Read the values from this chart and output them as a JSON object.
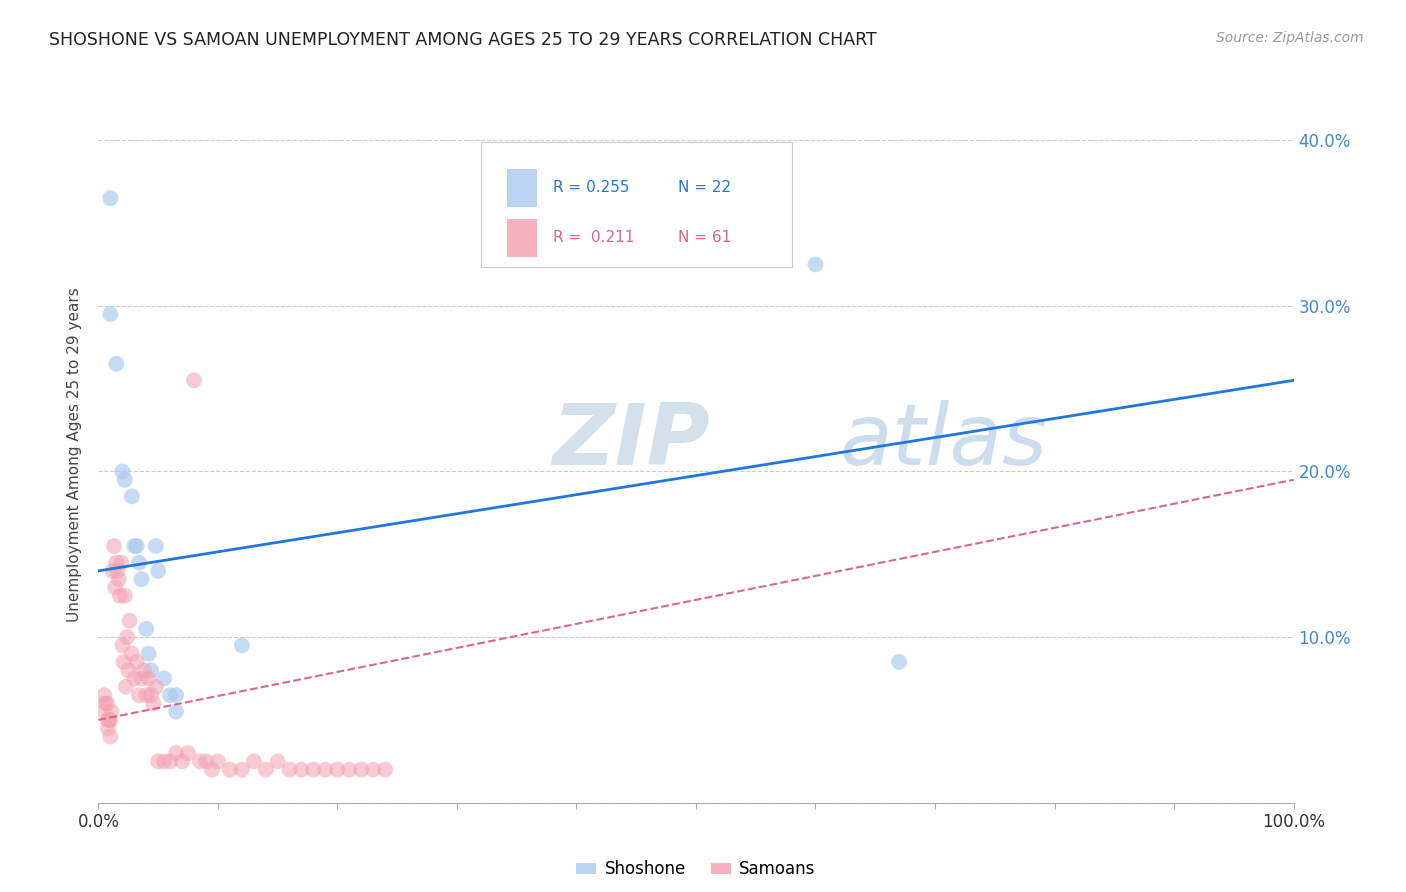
{
  "title": "SHOSHONE VS SAMOAN UNEMPLOYMENT AMONG AGES 25 TO 29 YEARS CORRELATION CHART",
  "source": "Source: ZipAtlas.com",
  "ylabel": "Unemployment Among Ages 25 to 29 years",
  "xlim": [
    0,
    1.0
  ],
  "ylim": [
    0,
    0.42
  ],
  "xticks": [
    0.0,
    0.1,
    0.2,
    0.3,
    0.4,
    0.5,
    0.6,
    0.7,
    0.8,
    0.9,
    1.0
  ],
  "xticklabels": [
    "0.0%",
    "",
    "",
    "",
    "",
    "",
    "",
    "",
    "",
    "",
    "100.0%"
  ],
  "yticks": [
    0.0,
    0.1,
    0.2,
    0.3,
    0.4
  ],
  "yticklabels_right": [
    "",
    "10.0%",
    "20.0%",
    "30.0%",
    "40.0%"
  ],
  "legend_r1": "R = 0.255",
  "legend_n1": "N = 22",
  "legend_r2": "R =  0.211",
  "legend_n2": "N = 61",
  "shoshone_color": "#a8c8ee",
  "samoan_color": "#f4a0b0",
  "shoshone_line_color": "#2277dd",
  "samoan_line_color": "#dd6688",
  "watermark_zip": "ZIP",
  "watermark_atlas": "atlas",
  "shoshone_x": [
    0.01,
    0.01,
    0.015,
    0.02,
    0.022,
    0.028,
    0.03,
    0.032,
    0.034,
    0.036,
    0.04,
    0.042,
    0.044,
    0.048,
    0.05,
    0.055,
    0.06,
    0.065,
    0.065,
    0.12,
    0.6,
    0.67
  ],
  "shoshone_y": [
    0.365,
    0.295,
    0.265,
    0.2,
    0.195,
    0.185,
    0.155,
    0.155,
    0.145,
    0.135,
    0.105,
    0.09,
    0.08,
    0.155,
    0.14,
    0.075,
    0.065,
    0.065,
    0.055,
    0.095,
    0.325,
    0.085
  ],
  "samoan_x": [
    0.005,
    0.005,
    0.006,
    0.007,
    0.008,
    0.008,
    0.009,
    0.01,
    0.01,
    0.011,
    0.012,
    0.013,
    0.014,
    0.015,
    0.016,
    0.017,
    0.018,
    0.019,
    0.02,
    0.021,
    0.022,
    0.023,
    0.024,
    0.025,
    0.026,
    0.028,
    0.03,
    0.032,
    0.034,
    0.036,
    0.038,
    0.04,
    0.042,
    0.044,
    0.046,
    0.048,
    0.05,
    0.055,
    0.06,
    0.065,
    0.07,
    0.075,
    0.08,
    0.085,
    0.09,
    0.095,
    0.1,
    0.11,
    0.12,
    0.13,
    0.14,
    0.15,
    0.16,
    0.17,
    0.18,
    0.19,
    0.2,
    0.21,
    0.22,
    0.23,
    0.24
  ],
  "samoan_y": [
    0.065,
    0.055,
    0.06,
    0.06,
    0.05,
    0.045,
    0.05,
    0.05,
    0.04,
    0.055,
    0.14,
    0.155,
    0.13,
    0.145,
    0.14,
    0.135,
    0.125,
    0.145,
    0.095,
    0.085,
    0.125,
    0.07,
    0.1,
    0.08,
    0.11,
    0.09,
    0.075,
    0.085,
    0.065,
    0.075,
    0.08,
    0.065,
    0.075,
    0.065,
    0.06,
    0.07,
    0.025,
    0.025,
    0.025,
    0.03,
    0.025,
    0.03,
    0.255,
    0.025,
    0.025,
    0.02,
    0.025,
    0.02,
    0.02,
    0.025,
    0.02,
    0.025,
    0.02,
    0.02,
    0.02,
    0.02,
    0.02,
    0.02,
    0.02,
    0.02,
    0.02
  ],
  "shoshone_line_x": [
    0.0,
    1.0
  ],
  "shoshone_line_y": [
    0.14,
    0.255
  ],
  "samoan_line_x": [
    0.0,
    1.0
  ],
  "samoan_line_y": [
    0.05,
    0.195
  ],
  "background_color": "#ffffff",
  "grid_color": "#cccccc",
  "tick_color_right": "#4488cc",
  "title_fontsize": 12.5,
  "source_fontsize": 10,
  "axis_label_fontsize": 11,
  "tick_fontsize": 12
}
